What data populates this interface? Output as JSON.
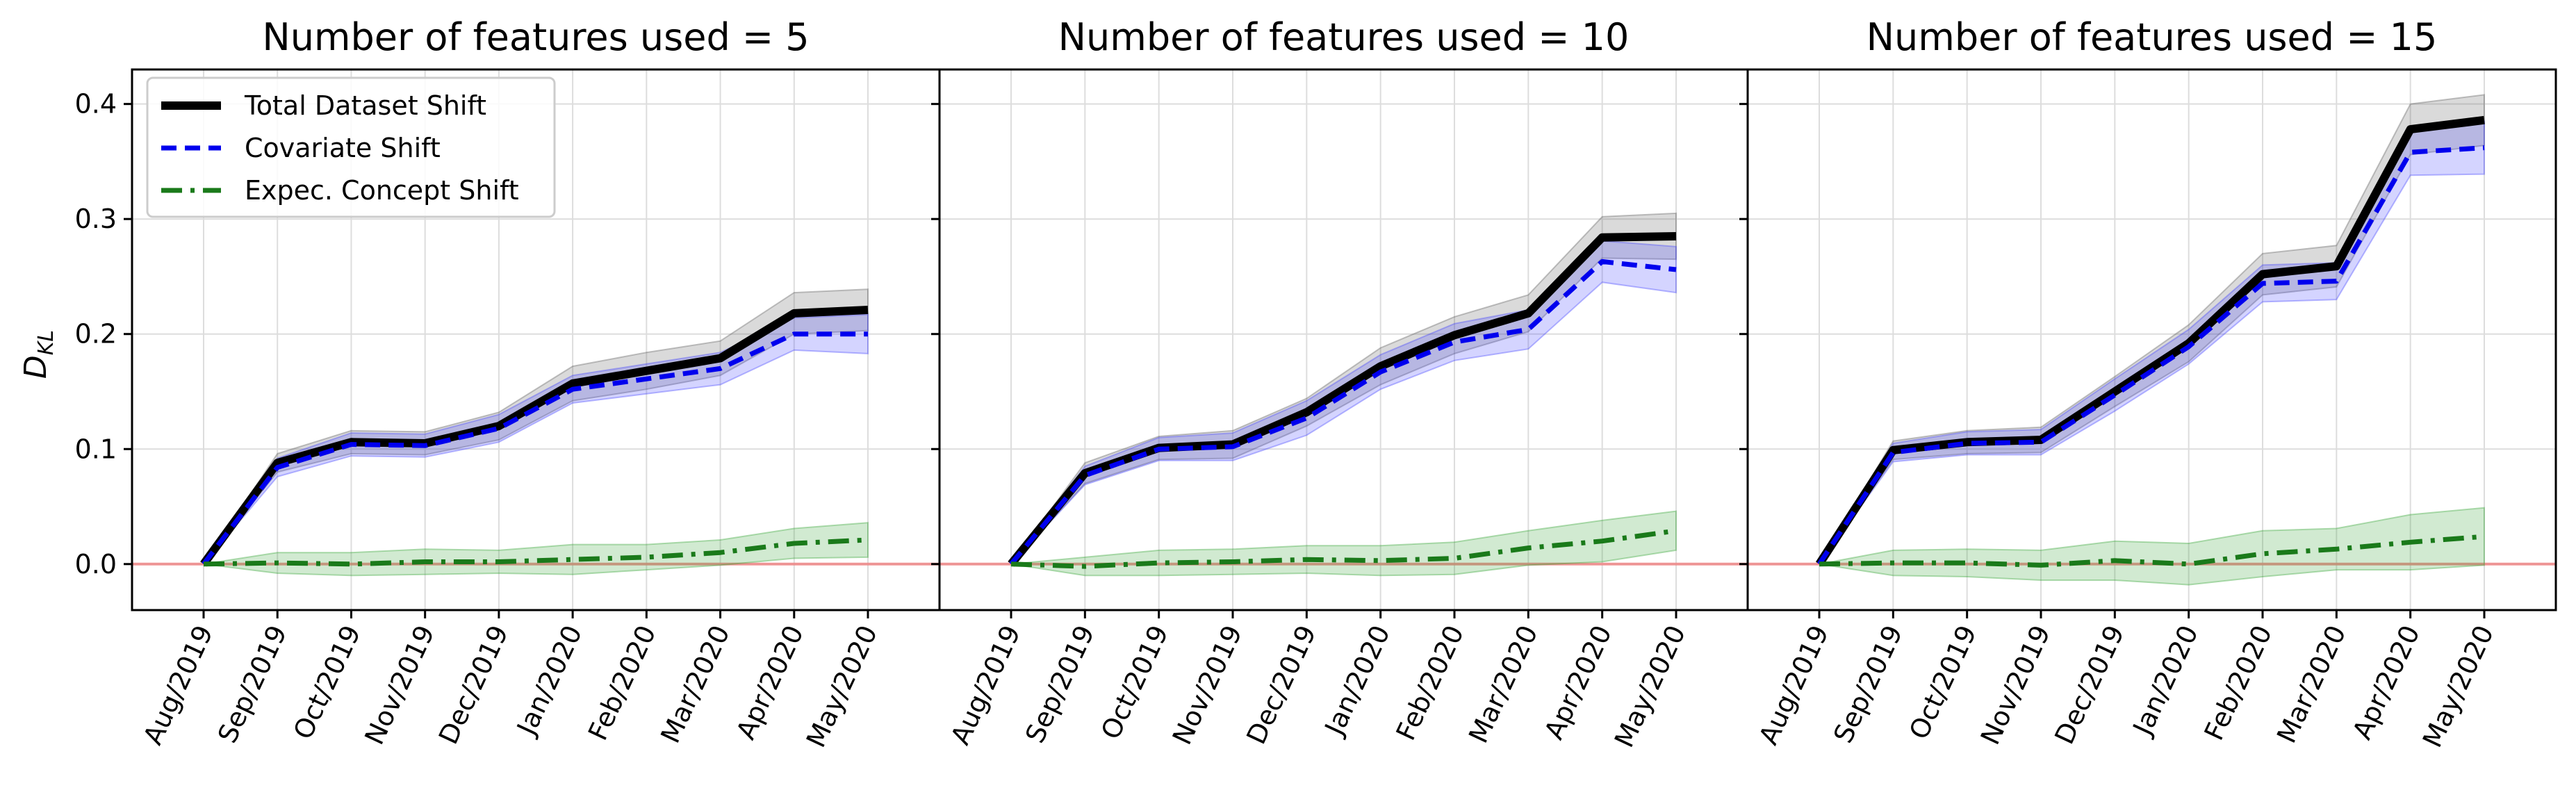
{
  "colors": {
    "total": "#000000",
    "covariate": "#0000ee",
    "concept": "#1a7a1a",
    "zero_line": "#f08080",
    "grid": "#dddddd"
  },
  "chart_data": {
    "type": "line",
    "ylabel": "D",
    "ylabel_subscript": "KL",
    "ylim": [
      -0.04,
      0.43
    ],
    "yticks": [
      "0.0",
      "0.1",
      "0.2",
      "0.3",
      "0.4"
    ],
    "grid": true,
    "legend_position": "upper-left",
    "x": [
      "Aug/2019",
      "Sep/2019",
      "Oct/2019",
      "Nov/2019",
      "Dec/2019",
      "Jan/2020",
      "Feb/2020",
      "Mar/2020",
      "Apr/2020",
      "May/2020"
    ],
    "legend": [
      "Total Dataset Shift",
      "Covariate Shift",
      "Expec. Concept Shift"
    ],
    "panels": [
      {
        "title": "Number of features used = 5",
        "series": [
          {
            "name": "Total Dataset Shift",
            "values": [
              0.0,
              0.088,
              0.106,
              0.105,
              0.12,
              0.157,
              0.168,
              0.179,
              0.218,
              0.221
            ],
            "band": [
              0.0,
              0.008,
              0.01,
              0.01,
              0.012,
              0.015,
              0.016,
              0.015,
              0.018,
              0.018
            ]
          },
          {
            "name": "Covariate Shift",
            "values": [
              0.0,
              0.084,
              0.104,
              0.103,
              0.118,
              0.152,
              0.161,
              0.17,
              0.2,
              0.2
            ],
            "band": [
              0.0,
              0.008,
              0.01,
              0.01,
              0.012,
              0.012,
              0.013,
              0.014,
              0.014,
              0.017
            ]
          },
          {
            "name": "Expec. Concept Shift",
            "values": [
              0.0,
              0.001,
              0.0,
              0.002,
              0.002,
              0.004,
              0.006,
              0.01,
              0.018,
              0.021
            ],
            "band": [
              0.0,
              0.009,
              0.01,
              0.011,
              0.01,
              0.013,
              0.011,
              0.011,
              0.013,
              0.015
            ]
          }
        ]
      },
      {
        "title": "Number of features used = 10",
        "series": [
          {
            "name": "Total Dataset Shift",
            "values": [
              0.0,
              0.079,
              0.101,
              0.104,
              0.132,
              0.172,
              0.199,
              0.218,
              0.284,
              0.285
            ],
            "band": [
              0.0,
              0.009,
              0.01,
              0.012,
              0.012,
              0.016,
              0.016,
              0.016,
              0.018,
              0.02
            ]
          },
          {
            "name": "Covariate Shift",
            "values": [
              0.0,
              0.077,
              0.1,
              0.102,
              0.127,
              0.167,
              0.193,
              0.204,
              0.263,
              0.256
            ],
            "band": [
              0.0,
              0.008,
              0.01,
              0.012,
              0.015,
              0.015,
              0.016,
              0.017,
              0.018,
              0.02
            ]
          },
          {
            "name": "Expec. Concept Shift",
            "values": [
              0.0,
              -0.002,
              0.001,
              0.002,
              0.004,
              0.003,
              0.005,
              0.014,
              0.02,
              0.029
            ],
            "band": [
              0.0,
              0.008,
              0.011,
              0.011,
              0.012,
              0.013,
              0.014,
              0.015,
              0.018,
              0.017
            ]
          }
        ]
      },
      {
        "title": "Number of features used = 15",
        "series": [
          {
            "name": "Total Dataset Shift",
            "values": [
              0.0,
              0.099,
              0.106,
              0.108,
              0.15,
              0.192,
              0.252,
              0.259,
              0.378,
              0.386
            ],
            "band": [
              0.0,
              0.008,
              0.01,
              0.011,
              0.013,
              0.016,
              0.018,
              0.018,
              0.022,
              0.022
            ]
          },
          {
            "name": "Covariate Shift",
            "values": [
              0.0,
              0.097,
              0.105,
              0.106,
              0.147,
              0.189,
              0.244,
              0.246,
              0.358,
              0.362
            ],
            "band": [
              0.0,
              0.008,
              0.01,
              0.011,
              0.014,
              0.015,
              0.016,
              0.016,
              0.02,
              0.023
            ]
          },
          {
            "name": "Expec. Concept Shift",
            "values": [
              0.0,
              0.001,
              0.001,
              -0.001,
              0.003,
              0.0,
              0.009,
              0.013,
              0.019,
              0.024
            ],
            "band": [
              0.0,
              0.011,
              0.012,
              0.013,
              0.017,
              0.018,
              0.02,
              0.018,
              0.024,
              0.025
            ]
          }
        ]
      }
    ]
  }
}
